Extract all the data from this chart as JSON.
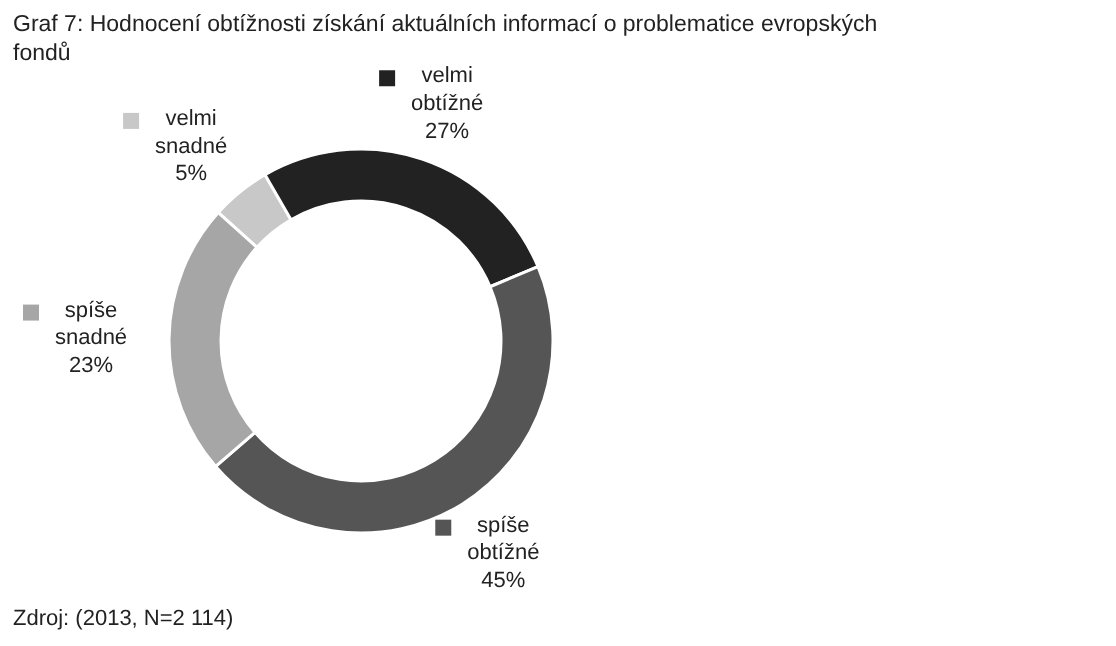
{
  "chart_data": {
    "type": "donut",
    "title": "Graf 7: Hodnocení obtížnosti získání aktuálních informací o problematice evropských fondů",
    "categories": [
      "velmi snadné",
      "velmi obtížné",
      "spíše obtížné",
      "spíše snadné"
    ],
    "values": [
      5,
      27,
      45,
      23
    ],
    "colors": [
      "#c8c8c8",
      "#222222",
      "#555555",
      "#a6a6a6"
    ],
    "value_labels": [
      "5%",
      "27%",
      "45%",
      "23%"
    ],
    "legend": "left",
    "annotations": [
      "Zdroj: (2013, N=2 114)"
    ]
  }
}
